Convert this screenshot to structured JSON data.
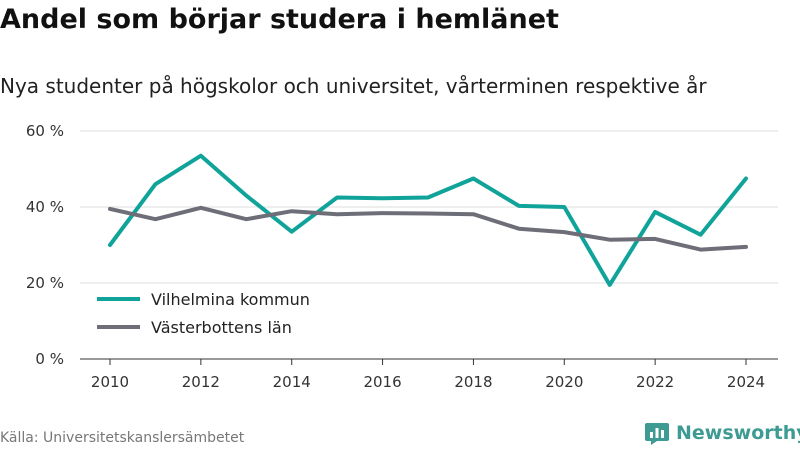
{
  "header": {
    "title": "Andel som börjar studera i hemlänet",
    "subtitle": "Nya studenter på högskolor och universitet, vårterminen respektive år"
  },
  "footer": {
    "source": "Källa: Universitetskanslersämbetet",
    "brand": "Newsworthy",
    "brand_icon": "bar-chart-logo-icon"
  },
  "colors": {
    "vilhelmina": "#10a39a",
    "vasterbotten": "#6e6e78",
    "grid": "#dddddd",
    "brand": "#3d9b94"
  },
  "chart_data": {
    "type": "line",
    "x": [
      2010,
      2011,
      2012,
      2013,
      2014,
      2015,
      2016,
      2017,
      2018,
      2019,
      2020,
      2021,
      2022,
      2023,
      2024
    ],
    "series": [
      {
        "name": "Vilhelmina kommun",
        "color": "#10a39a",
        "values": [
          30,
          46,
          53.5,
          43,
          33.5,
          42.5,
          42.3,
          42.5,
          47.5,
          40.3,
          40,
          19.5,
          38.7,
          32.7,
          47.5
        ]
      },
      {
        "name": "Västerbottens län",
        "color": "#6e6e78",
        "values": [
          39.5,
          36.8,
          39.8,
          36.8,
          38.9,
          38.1,
          38.4,
          38.3,
          38.1,
          34.3,
          33.4,
          31.4,
          31.6,
          28.8,
          29.5
        ]
      }
    ],
    "xticks": [
      2010,
      2012,
      2014,
      2016,
      2018,
      2020,
      2022,
      2024
    ],
    "yticks": [
      0,
      20,
      40,
      60
    ],
    "ytick_labels": [
      "0 %",
      "20 %",
      "40 %",
      "60 %"
    ],
    "ylim": [
      0,
      60
    ],
    "xlim": [
      2010,
      2024
    ],
    "grid": "horizontal",
    "legend_position": "bottom-left"
  }
}
